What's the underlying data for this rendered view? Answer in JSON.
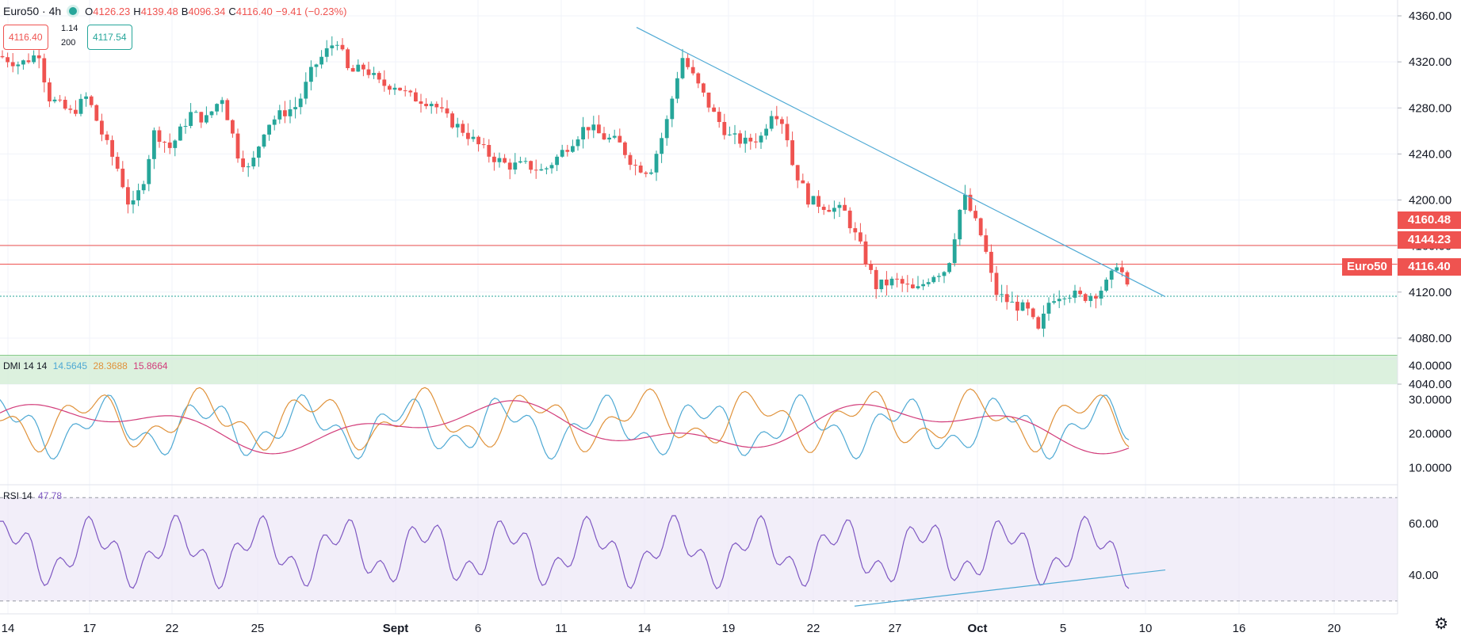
{
  "header": {
    "symbol": "Euro50 · 4h",
    "open_k": "O",
    "open": "4126.23",
    "high_k": "H",
    "high": "4139.48",
    "low_k": "B",
    "low": "4096.34",
    "close_k": "C",
    "close": "4116.40",
    "change": "−9.41 (−0.23%)",
    "sell": "4116.40",
    "spread": "1.14",
    "qty": "200",
    "buy": "4117.54"
  },
  "price_axis": {
    "ticks": [
      "4360.00",
      "4320.00",
      "4280.00",
      "4240.00",
      "4200.00",
      "4160.00",
      "4120.00",
      "4080.00",
      "4040.00"
    ],
    "labels": {
      "level1": "4160.48",
      "level2": "4144.23",
      "current": "4116.40",
      "symbol": "Euro50"
    }
  },
  "time_axis": [
    "14",
    "17",
    "22",
    "25",
    "Sept",
    "6",
    "11",
    "14",
    "19",
    "22",
    "27",
    "Oct",
    "5",
    "10",
    "16",
    "20"
  ],
  "dmi": {
    "label": "DMI 14 14",
    "plus": "14.5645",
    "minus": "28.3688",
    "adx": "15.8664",
    "ticks": [
      "40.0000",
      "30.0000",
      "20.0000",
      "10.0000"
    ]
  },
  "rsi": {
    "label": "RSI 14",
    "value": "47.78",
    "ticks": [
      "60.00",
      "40.00"
    ]
  },
  "colors": {
    "up": "#26a69a",
    "down": "#ef5350",
    "dmi_plus": "#4ea9d4",
    "dmi_minus": "#e0923a",
    "adx": "#d23c7a",
    "rsi": "#7e57c2",
    "trend": "#4ea9d4",
    "level": "#ef5350",
    "support_zone": "#d6eed8"
  },
  "chart_data": {
    "type": "candlestick",
    "timeframe": "4h",
    "levels": [
      4160.48,
      4144.23
    ],
    "current": 4116.4,
    "support_zone": [
      4040,
      4065
    ],
    "rsi_band": [
      30,
      70
    ]
  }
}
